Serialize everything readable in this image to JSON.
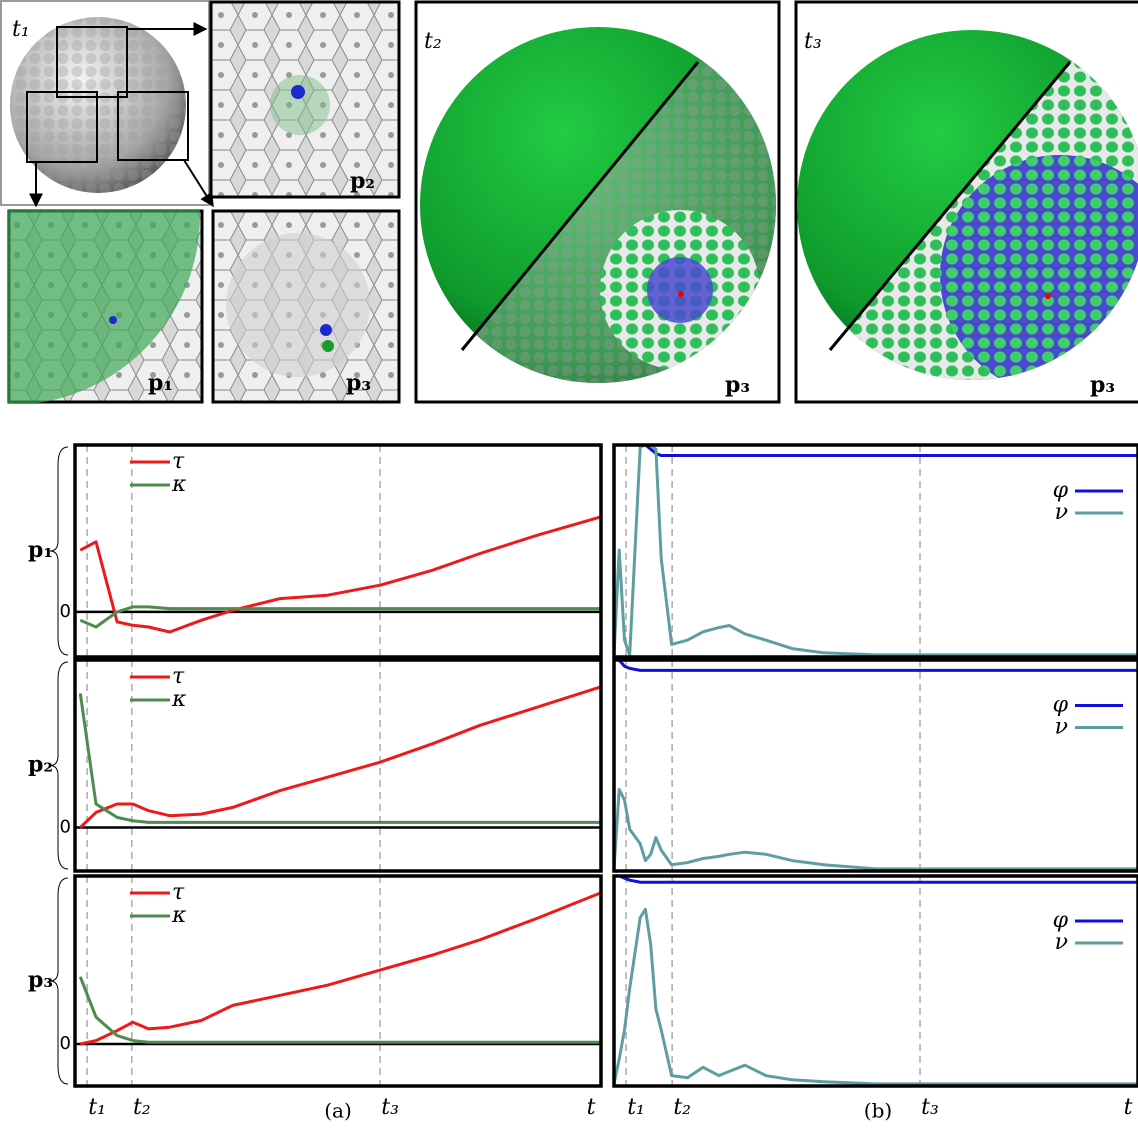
{
  "figure": {
    "overview_label": "t₁",
    "inset_p2_label": "p₂",
    "inset_p1_label": "p₁",
    "inset_p3_label": "p₃",
    "sphere_t2_label": "t₂",
    "sphere_t2_point": "p₃",
    "sphere_t3_label": "t₃",
    "sphere_t3_point": "p₃",
    "caption_a": "(a)",
    "caption_b": "(b)"
  },
  "chart_data": [
    {
      "type": "line",
      "row_label": "p₁",
      "legend": "upper left",
      "x": [
        1,
        4,
        8,
        11,
        14,
        18,
        24,
        30,
        39,
        48,
        58,
        68,
        77,
        88,
        100
      ],
      "xlim": [
        0,
        100
      ],
      "ylim": [
        -27,
        100
      ],
      "xticks": [
        2.3,
        10.8,
        58
      ],
      "yticks": [
        0
      ],
      "series": [
        {
          "name": "τ",
          "color": "#ee1a1a",
          "values": [
            37,
            42,
            -6,
            -8,
            -9,
            -12,
            -5,
            1,
            8,
            10,
            16,
            25,
            35,
            46,
            57
          ]
        },
        {
          "name": "κ",
          "color": "#4f8a4f",
          "values": [
            -5,
            -9,
            0,
            3,
            3,
            2,
            2,
            2,
            2,
            2,
            2,
            2,
            2,
            2,
            2
          ]
        }
      ]
    },
    {
      "type": "line",
      "row_label": "p₂",
      "legend": "upper left",
      "x": [
        1,
        4,
        8,
        11,
        14,
        18,
        24,
        30,
        39,
        48,
        58,
        68,
        77,
        88,
        100
      ],
      "xlim": [
        0,
        100
      ],
      "ylim": [
        -26,
        100
      ],
      "xticks": [
        2.3,
        10.8,
        58
      ],
      "yticks": [
        0
      ],
      "series": [
        {
          "name": "τ",
          "color": "#ee1a1a",
          "values": [
            0,
            9,
            14,
            14,
            10,
            7,
            8,
            12,
            22,
            30,
            39,
            50,
            61,
            72,
            84
          ]
        },
        {
          "name": "κ",
          "color": "#4f8a4f",
          "values": [
            80,
            14,
            6,
            4,
            3,
            3,
            3,
            3,
            3,
            3,
            3,
            3,
            3,
            3,
            3
          ]
        }
      ]
    },
    {
      "type": "line",
      "row_label": "p₃",
      "legend": "upper left",
      "x": [
        1,
        4,
        8,
        11,
        14,
        18,
        24,
        30,
        39,
        48,
        58,
        68,
        77,
        88,
        100
      ],
      "xlim": [
        0,
        100
      ],
      "ylim": [
        -25,
        100
      ],
      "xticks": [
        {
          "value": 2.3,
          "label": "t₁"
        },
        {
          "value": 10.8,
          "label": "t₂"
        },
        {
          "value": 58,
          "label": "t₃"
        }
      ],
      "yticks": [
        0
      ],
      "xlabel": "t",
      "series": [
        {
          "name": "τ",
          "color": "#ee1a1a",
          "values": [
            0,
            2,
            8,
            13,
            9,
            10,
            14,
            23,
            29,
            35,
            44,
            53,
            62,
            75,
            90
          ]
        },
        {
          "name": "κ",
          "color": "#4f8a4f",
          "values": [
            40,
            16,
            5,
            2,
            1,
            1,
            1,
            1,
            1,
            1,
            1,
            1,
            1,
            1,
            1
          ]
        }
      ]
    },
    {
      "type": "line",
      "legend": "center right",
      "x": [
        0,
        1,
        2,
        3,
        5,
        6,
        7,
        8,
        9,
        11,
        14,
        17,
        20,
        22,
        25,
        29,
        34,
        40,
        50,
        60,
        80,
        100
      ],
      "xlim": [
        0,
        100
      ],
      "ylim": [
        -1,
        100
      ],
      "xticks": [
        2.3,
        11.1,
        58.4
      ],
      "series": [
        {
          "name": "φ",
          "color": "#1010dd",
          "values": [
            100,
            100,
            100,
            100,
            100,
            100,
            98,
            96,
            95,
            95,
            95,
            95,
            95,
            95,
            95,
            95,
            95,
            95,
            95,
            95,
            95,
            95
          ]
        },
        {
          "name": "ν",
          "color": "#5f9ea0",
          "values": [
            0,
            50,
            7,
            0,
            99,
            100,
            100,
            98,
            46,
            5,
            7,
            11,
            13,
            14,
            10,
            7,
            3,
            1,
            0,
            0,
            0,
            0
          ]
        }
      ]
    },
    {
      "type": "line",
      "legend": "center right",
      "x": [
        0,
        1,
        2,
        3,
        5,
        6,
        7,
        8,
        9,
        11,
        14,
        17,
        20,
        22,
        25,
        29,
        34,
        40,
        50,
        60,
        80,
        100
      ],
      "xlim": [
        0,
        100
      ],
      "ylim": [
        -1,
        100
      ],
      "xticks": [
        2.3,
        11.1,
        58.4
      ],
      "series": [
        {
          "name": "φ",
          "color": "#1010dd",
          "values": [
            100,
            100,
            97,
            96,
            95,
            95,
            95,
            95,
            95,
            95,
            95,
            95,
            95,
            95,
            95,
            95,
            95,
            95,
            95,
            95,
            95,
            95
          ]
        },
        {
          "name": "ν",
          "color": "#5f9ea0",
          "values": [
            0,
            38,
            33,
            19,
            12,
            4,
            7,
            15,
            9,
            2,
            3,
            5,
            6,
            7,
            8,
            7,
            4,
            2,
            0,
            0,
            0,
            0
          ]
        }
      ]
    },
    {
      "type": "line",
      "legend": "center right",
      "x": [
        0,
        1,
        2,
        3,
        5,
        6,
        7,
        8,
        9,
        11,
        14,
        17,
        20,
        22,
        25,
        29,
        34,
        40,
        50,
        60,
        80,
        100
      ],
      "xlim": [
        0,
        100
      ],
      "ylim": [
        -1,
        100
      ],
      "xticks": [
        {
          "value": 2.3,
          "label": "t₁"
        },
        {
          "value": 11.1,
          "label": "t₂"
        },
        {
          "value": 58.4,
          "label": "t₃"
        }
      ],
      "xlabel": "t",
      "series": [
        {
          "name": "φ",
          "color": "#1010dd",
          "values": [
            100,
            100,
            99,
            98,
            97,
            97,
            97,
            97,
            97,
            97,
            97,
            97,
            97,
            97,
            97,
            97,
            97,
            97,
            97,
            97,
            97,
            97
          ]
        },
        {
          "name": "ν",
          "color": "#5f9ea0",
          "values": [
            0,
            12,
            26,
            46,
            80,
            84,
            67,
            36,
            26,
            4,
            3,
            8,
            4,
            6,
            9,
            4,
            2,
            1,
            0,
            0,
            0,
            0
          ]
        }
      ]
    }
  ]
}
